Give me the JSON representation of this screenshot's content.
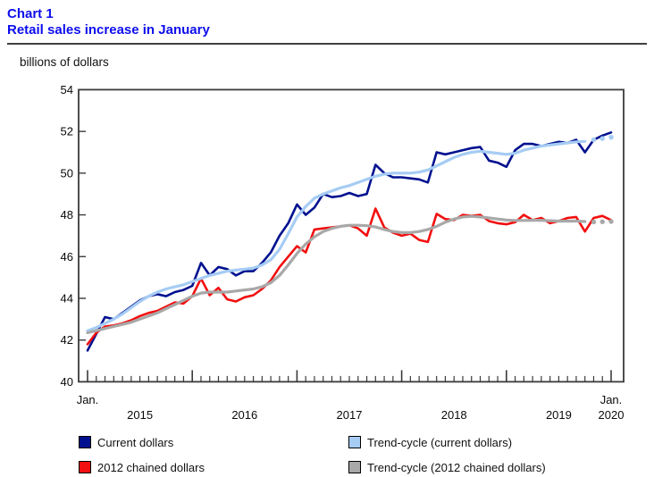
{
  "header": {
    "chart_label": "Chart 1",
    "title": "Retail sales increase in January",
    "unit_label": "billions of dollars"
  },
  "colors": {
    "title_blue": "#0d0dee",
    "current": "#00118F",
    "trend_current": "#A6CCF4",
    "chained": "#F20F0F",
    "trend_chained": "#A8A8A8",
    "axis": "#3a3a3a"
  },
  "legend": [
    {
      "label": "Current dollars",
      "color": "#00118F"
    },
    {
      "label": "2012 chained dollars",
      "color": "#F20F0F"
    },
    {
      "label": "Trend-cycle (current dollars)",
      "color": "#A6CCF4"
    },
    {
      "label": "Trend-cycle (2012 chained dollars)",
      "color": "#A8A8A8"
    }
  ],
  "chart_data": {
    "type": "line",
    "title": "Retail sales increase in January",
    "ylabel": "billions of dollars",
    "ylim": [
      40,
      54
    ],
    "ytick_step": 2,
    "grid": false,
    "legend_position": "bottom",
    "x_axis": {
      "start_label": "Jan.",
      "end_label": "Jan.",
      "year_labels": [
        "2015",
        "2016",
        "2017",
        "2018",
        "2019"
      ],
      "end_year_label": "2020",
      "months_total": 61,
      "x_start": "2015-01",
      "x_end": "2020-01"
    },
    "trend_dotted_from_index": 58,
    "series": [
      {
        "id": "current",
        "name": "Current dollars",
        "kind": "raw",
        "color": "#00118F",
        "values": [
          41.5,
          42.3,
          43.1,
          43.0,
          43.3,
          43.6,
          43.9,
          44.1,
          44.2,
          44.1,
          44.3,
          44.4,
          44.6,
          45.7,
          45.1,
          45.5,
          45.4,
          45.1,
          45.3,
          45.3,
          45.7,
          46.2,
          47.0,
          47.6,
          48.5,
          48.0,
          48.35,
          49.0,
          48.85,
          48.9,
          49.05,
          48.9,
          49.0,
          50.4,
          50.0,
          49.8,
          49.8,
          49.75,
          49.7,
          49.55,
          51.0,
          50.9,
          51.0,
          51.1,
          51.2,
          51.25,
          50.6,
          50.5,
          50.3,
          51.1,
          51.4,
          51.4,
          51.3,
          51.4,
          51.5,
          51.45,
          51.6,
          51.0,
          51.6,
          51.8,
          51.95
        ]
      },
      {
        "id": "trend_current",
        "name": "Trend-cycle (current dollars)",
        "kind": "trend",
        "color": "#A6CCF4",
        "values": [
          42.45,
          42.6,
          42.8,
          43.0,
          43.25,
          43.55,
          43.85,
          44.1,
          44.3,
          44.45,
          44.55,
          44.65,
          44.8,
          44.95,
          45.1,
          45.2,
          45.3,
          45.35,
          45.4,
          45.45,
          45.6,
          45.85,
          46.35,
          47.1,
          47.9,
          48.4,
          48.8,
          49.0,
          49.15,
          49.3,
          49.4,
          49.55,
          49.7,
          49.85,
          49.95,
          50.0,
          50.0,
          50.0,
          50.05,
          50.15,
          50.35,
          50.55,
          50.75,
          50.9,
          51.0,
          51.05,
          51.0,
          50.95,
          50.9,
          50.95,
          51.1,
          51.2,
          51.3,
          51.35,
          51.4,
          51.45,
          51.5,
          51.52,
          51.6,
          51.66,
          51.72
        ]
      },
      {
        "id": "chained",
        "name": "2012 chained dollars",
        "kind": "raw",
        "color": "#F20F0F",
        "values": [
          41.8,
          42.35,
          42.65,
          42.7,
          42.8,
          42.95,
          43.15,
          43.3,
          43.4,
          43.6,
          43.8,
          43.75,
          44.1,
          44.95,
          44.15,
          44.5,
          43.95,
          43.85,
          44.05,
          44.15,
          44.45,
          44.85,
          45.5,
          46.0,
          46.5,
          46.2,
          47.3,
          47.35,
          47.4,
          47.45,
          47.5,
          47.35,
          47.0,
          48.3,
          47.4,
          47.15,
          47.0,
          47.1,
          46.8,
          46.7,
          48.05,
          47.8,
          47.75,
          48.0,
          47.95,
          48.0,
          47.7,
          47.6,
          47.55,
          47.65,
          48.0,
          47.75,
          47.85,
          47.6,
          47.7,
          47.85,
          47.9,
          47.2,
          47.85,
          47.95,
          47.75
        ]
      },
      {
        "id": "trend_chained",
        "name": "Trend-cycle (2012 chained dollars)",
        "kind": "trend",
        "color": "#A8A8A8",
        "values": [
          42.35,
          42.45,
          42.55,
          42.65,
          42.75,
          42.85,
          43.0,
          43.15,
          43.3,
          43.5,
          43.7,
          43.9,
          44.1,
          44.25,
          44.3,
          44.3,
          44.3,
          44.35,
          44.4,
          44.45,
          44.55,
          44.75,
          45.1,
          45.6,
          46.15,
          46.6,
          46.95,
          47.2,
          47.35,
          47.45,
          47.5,
          47.5,
          47.48,
          47.42,
          47.3,
          47.2,
          47.15,
          47.15,
          47.2,
          47.3,
          47.45,
          47.65,
          47.8,
          47.9,
          47.93,
          47.9,
          47.85,
          47.8,
          47.75,
          47.73,
          47.73,
          47.74,
          47.74,
          47.72,
          47.7,
          47.7,
          47.7,
          47.68,
          47.66,
          47.67,
          47.68
        ]
      }
    ]
  }
}
